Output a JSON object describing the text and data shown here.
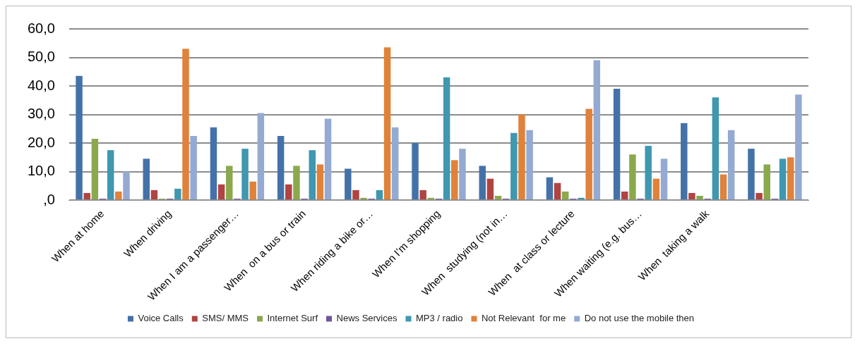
{
  "chart_data": {
    "type": "bar",
    "categories": [
      "When at home",
      "When driving",
      "When I am a passenger…",
      "When  on a bus or train",
      "When riding a bike or…",
      "When I’m shopping",
      "When  studying (not in…",
      "When  at class or lecture",
      "When waiting (e.g. bus…",
      "When  taking a walk",
      null
    ],
    "series": [
      {
        "name": "Voice Calls",
        "color": "#4472a8",
        "values": [
          43.5,
          14.5,
          25.5,
          22.5,
          11,
          20,
          12,
          8,
          39,
          27,
          18
        ]
      },
      {
        "name": "SMS/ MMS",
        "color": "#b04441",
        "values": [
          2.5,
          3.5,
          5.5,
          5.5,
          3.5,
          3.5,
          7.5,
          6,
          3,
          2.5,
          2.5
        ]
      },
      {
        "name": "Internet Surf",
        "color": "#8aa94d",
        "values": [
          21.5,
          0.5,
          12,
          12,
          0.8,
          0.8,
          1.5,
          3,
          16,
          1.5,
          12.5
        ]
      },
      {
        "name": "News Services",
        "color": "#71579a",
        "values": [
          0.5,
          0.5,
          0.5,
          0.5,
          0.5,
          0.5,
          0.5,
          0.5,
          0.5,
          0.5,
          0.5
        ]
      },
      {
        "name": "MP3 / radio",
        "color": "#3f97b0",
        "values": [
          17.5,
          4,
          18,
          17.5,
          3.5,
          43,
          23.5,
          0.8,
          19,
          36,
          14.5
        ]
      },
      {
        "name": "Not Relevant  for me",
        "color": "#e0823a",
        "values": [
          3,
          53,
          6.5,
          12.5,
          53.5,
          14,
          30,
          32,
          7.5,
          9,
          15
        ]
      },
      {
        "name": "Do not use the mobile then",
        "color": "#94aad2",
        "values": [
          10,
          22.5,
          30.5,
          28.5,
          25.5,
          18,
          24.5,
          49,
          14.5,
          24.5,
          37
        ]
      }
    ],
    "ylim": [
      0,
      60
    ],
    "yticks": [
      {
        "value": 0,
        "label": ",0"
      },
      {
        "value": 10,
        "label": "10,0"
      },
      {
        "value": 20,
        "label": "20,0"
      },
      {
        "value": 30,
        "label": "30,0"
      },
      {
        "value": 40,
        "label": "40,0"
      },
      {
        "value": 50,
        "label": "50,0"
      },
      {
        "value": 60,
        "label": "60,0"
      }
    ],
    "grid": "y",
    "legend": "bottom"
  }
}
